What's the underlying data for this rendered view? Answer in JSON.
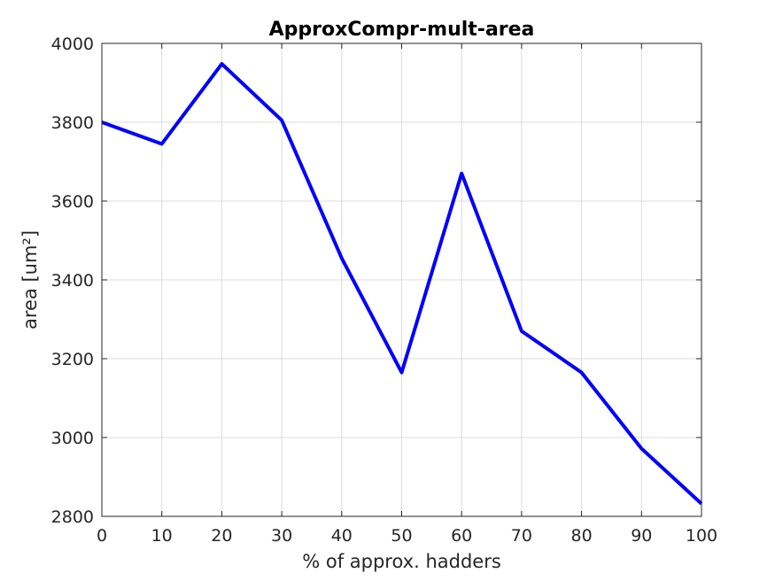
{
  "chart_data": {
    "type": "line",
    "title": "ApproxCompr-mult-area",
    "xlabel": "% of approx. hadders",
    "ylabel": "area [um²]",
    "x": [
      0,
      10,
      20,
      30,
      40,
      50,
      60,
      70,
      80,
      90,
      100
    ],
    "series": [
      {
        "values": [
          3800,
          3745,
          3948,
          3805,
          3455,
          3165,
          3670,
          3270,
          3165,
          2972,
          2832
        ],
        "color": "#0000ff"
      }
    ],
    "xlim": [
      0,
      100
    ],
    "ylim": [
      2800,
      4000
    ],
    "xticks": [
      0,
      10,
      20,
      30,
      40,
      50,
      60,
      70,
      80,
      90,
      100
    ],
    "yticks": [
      2800,
      3000,
      3200,
      3400,
      3600,
      3800,
      4000
    ],
    "grid": true,
    "legend": "none"
  }
}
